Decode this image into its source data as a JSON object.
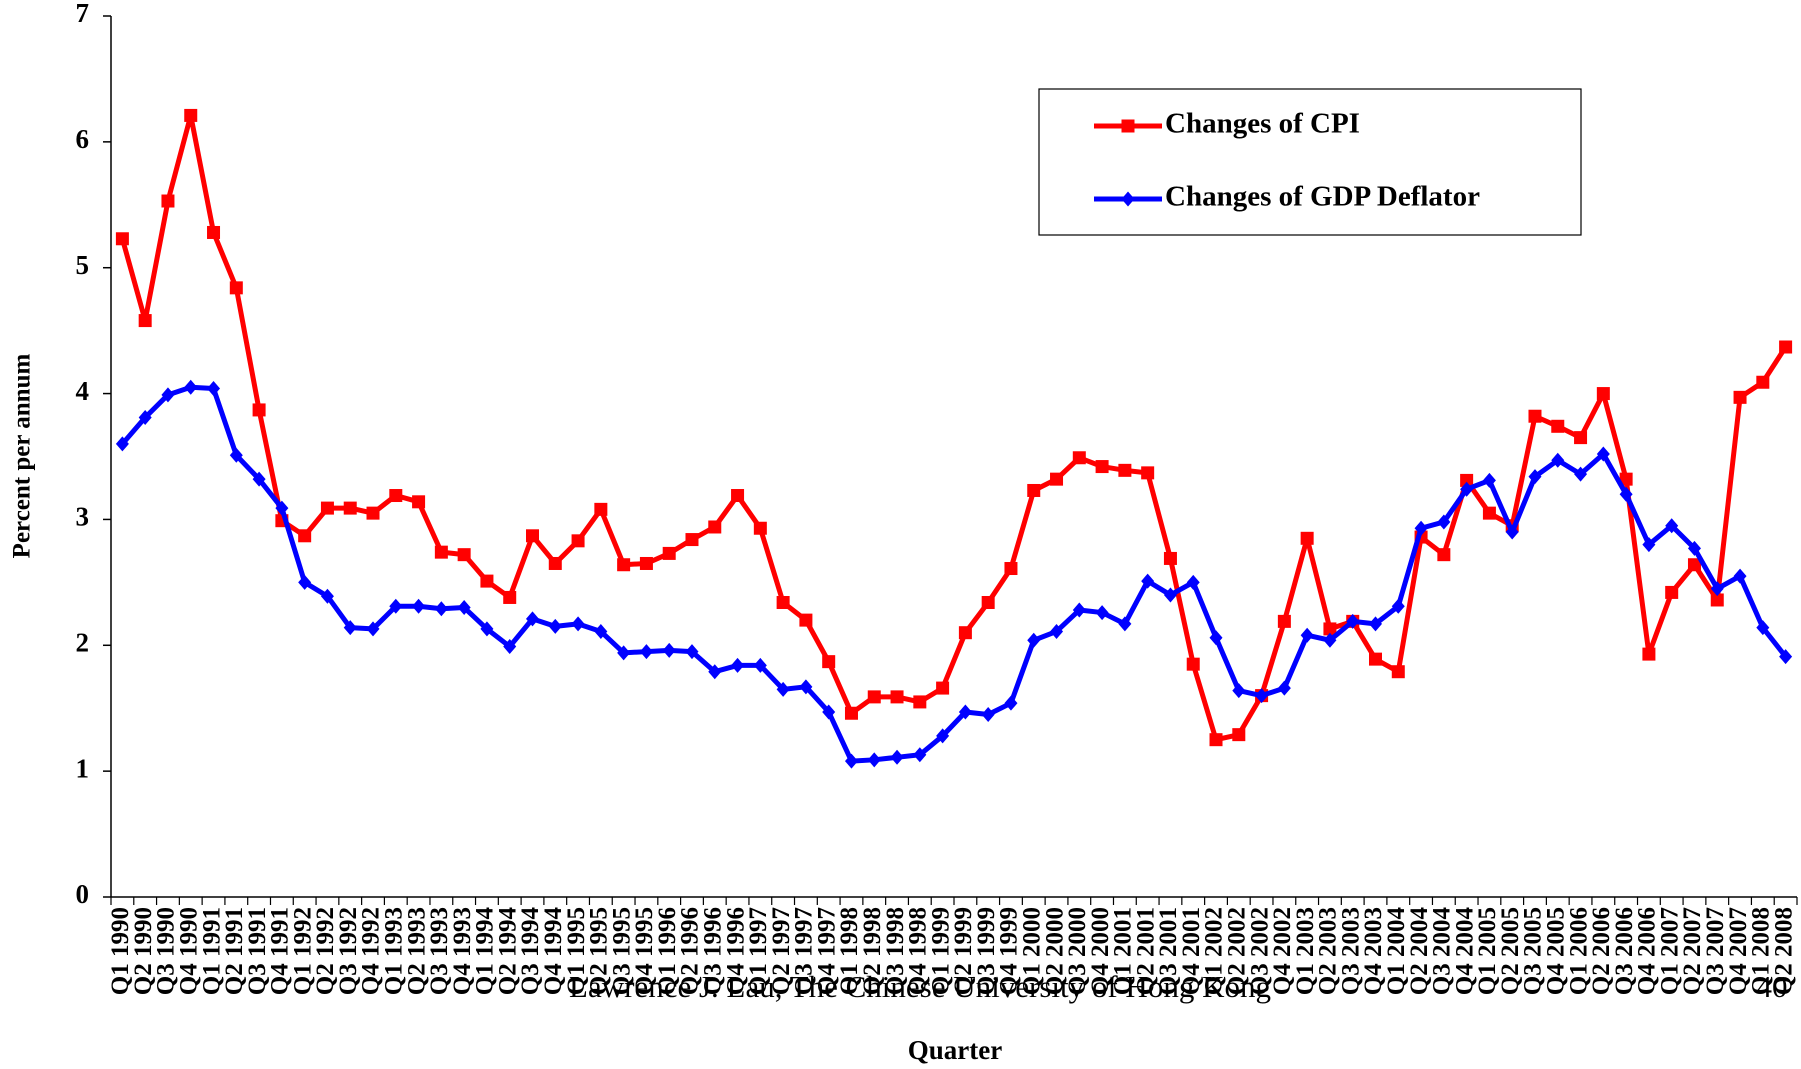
{
  "chart_data": {
    "type": "line",
    "ylabel": "Percent per annum",
    "xlabel": "Quarter",
    "footer": "Lawrence J. Lau, The Chinese University of Hong Kong",
    "page_number": "40",
    "categories": [
      "Q1 1990",
      "Q2 1990",
      "Q3 1990",
      "Q4 1990",
      "Q1 1991",
      "Q2 1991",
      "Q3 1991",
      "Q4 1991",
      "Q1 1992",
      "Q2 1992",
      "Q3 1992",
      "Q4 1992",
      "Q1 1993",
      "Q2 1993",
      "Q3 1993",
      "Q4 1993",
      "Q1 1994",
      "Q2 1994",
      "Q3 1994",
      "Q4 1994",
      "Q1 1995",
      "Q2 1995",
      "Q3 1995",
      "Q4 1995",
      "Q1 1996",
      "Q2 1996",
      "Q3 1996",
      "Q4 1996",
      "Q1 1997",
      "Q2 1997",
      "Q3 1997",
      "Q4 1997",
      "Q1 1998",
      "Q2 1998",
      "Q3 1998",
      "Q4 1998",
      "Q1 1999",
      "Q2 1999",
      "Q3 1999",
      "Q4 1999",
      "Q1 2000",
      "Q2 2000",
      "Q3 2000",
      "Q4 2000",
      "Q1 2001",
      "Q2 2001",
      "Q3 2001",
      "Q4 2001",
      "Q1 2002",
      "Q2 2002",
      "Q3 2002",
      "Q4 2002",
      "Q1 2003",
      "Q2 2003",
      "Q3 2003",
      "Q4 2003",
      "Q1 2004",
      "Q2 2004",
      "Q3 2004",
      "Q4 2004",
      "Q1 2005",
      "Q2 2005",
      "Q3 2005",
      "Q4 2005",
      "Q1 2006",
      "Q2 2006",
      "Q3 2006",
      "Q4 2006",
      "Q1 2007",
      "Q2 2007",
      "Q3 2007",
      "Q4 2007",
      "Q1 2008",
      "Q2 2008"
    ],
    "series": [
      {
        "name": "Changes of CPI",
        "color": "#ff0000",
        "marker": "square",
        "values": [
          5.23,
          4.58,
          5.53,
          6.21,
          5.28,
          4.84,
          3.87,
          2.99,
          2.87,
          3.09,
          3.09,
          3.05,
          3.19,
          3.14,
          2.74,
          2.72,
          2.51,
          2.38,
          2.87,
          2.65,
          2.83,
          3.08,
          2.64,
          2.65,
          2.73,
          2.84,
          2.94,
          3.19,
          2.93,
          2.34,
          2.2,
          1.87,
          1.46,
          1.59,
          1.59,
          1.55,
          1.66,
          2.1,
          2.34,
          2.61,
          3.23,
          3.32,
          3.49,
          3.42,
          3.39,
          3.37,
          2.69,
          1.85,
          1.25,
          1.29,
          1.6,
          2.19,
          2.85,
          2.13,
          2.19,
          1.89,
          1.79,
          2.86,
          2.72,
          3.31,
          3.05,
          2.95,
          3.82,
          3.74,
          3.65,
          4.0,
          3.32,
          1.93,
          2.42,
          2.64,
          2.36,
          3.97,
          4.09,
          4.37
        ]
      },
      {
        "name": "Changes of GDP Deflator",
        "color": "#0000ff",
        "marker": "diamond",
        "values": [
          3.6,
          3.81,
          3.99,
          4.05,
          4.04,
          3.51,
          3.32,
          3.09,
          2.5,
          2.39,
          2.14,
          2.13,
          2.31,
          2.31,
          2.29,
          2.3,
          2.13,
          1.99,
          2.21,
          2.15,
          2.17,
          2.11,
          1.94,
          1.95,
          1.96,
          1.95,
          1.79,
          1.84,
          1.84,
          1.65,
          1.67,
          1.47,
          1.08,
          1.09,
          1.11,
          1.13,
          1.28,
          1.47,
          1.45,
          1.54,
          2.04,
          2.11,
          2.28,
          2.26,
          2.17,
          2.51,
          2.4,
          2.5,
          2.06,
          1.64,
          1.6,
          1.66,
          2.08,
          2.04,
          2.19,
          2.17,
          2.31,
          2.93,
          2.98,
          3.24,
          3.31,
          2.9,
          3.34,
          3.47,
          3.36,
          3.52,
          3.2,
          2.8,
          2.95,
          2.77,
          2.45,
          2.55,
          2.14,
          1.91
        ]
      }
    ],
    "ylim": [
      0,
      7
    ],
    "yticks": [
      0,
      1,
      2,
      3,
      4,
      5,
      6,
      7
    ],
    "grid": false,
    "legend": "upper right"
  }
}
